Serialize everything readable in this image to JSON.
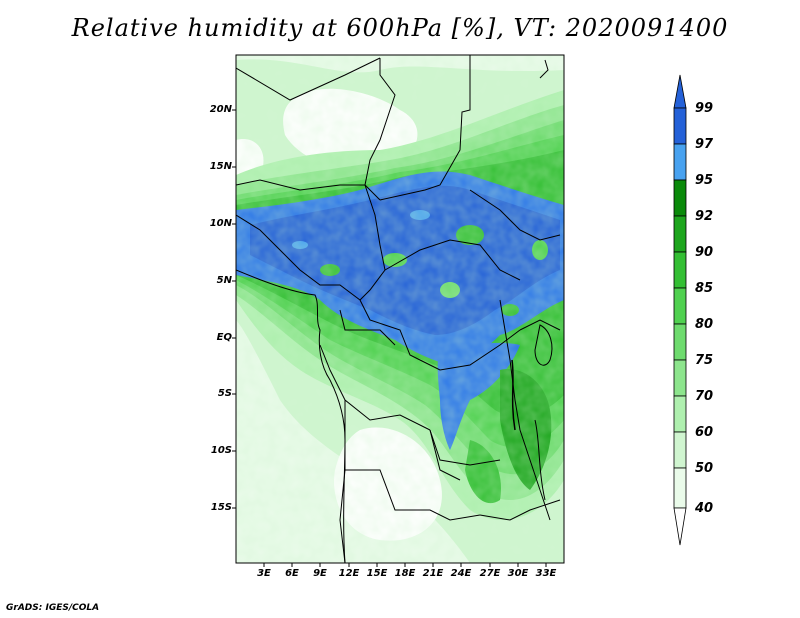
{
  "title": "Relative humidity at 600hPa [%], VT: 2020091400",
  "credit": "GrADS: IGES/COLA",
  "map": {
    "lat_ticks": [
      "20N",
      "15N",
      "10N",
      "5N",
      "EQ",
      "5S",
      "10S",
      "15S"
    ],
    "lon_ticks": [
      "3E",
      "6E",
      "9E",
      "12E",
      "15E",
      "18E",
      "21E",
      "24E",
      "27E",
      "30E",
      "33E"
    ]
  },
  "colorbar": {
    "labels": [
      "99",
      "97",
      "95",
      "92",
      "90",
      "85",
      "80",
      "75",
      "70",
      "60",
      "50",
      "40"
    ],
    "colors": [
      "#2461d8",
      "#2f79e8",
      "#48a2f0",
      "#0a8a0a",
      "#1ea61e",
      "#34bf34",
      "#50d150",
      "#6edb6e",
      "#8de58d",
      "#aff0af",
      "#d0f5d0",
      "#eafbea",
      "#ffffff"
    ]
  },
  "chart_data": {
    "type": "heatmap",
    "title": "Relative humidity at 600hPa [%], VT: 2020091400",
    "variable": "Relative humidity",
    "level": "600hPa",
    "units": "%",
    "valid_time": "2020091400",
    "lat_ticks": [
      "20N",
      "15N",
      "10N",
      "5N",
      "EQ",
      "5S",
      "10S",
      "15S"
    ],
    "lon_ticks": [
      "3E",
      "6E",
      "9E",
      "12E",
      "15E",
      "18E",
      "21E",
      "24E",
      "27E",
      "30E",
      "33E"
    ],
    "color_levels": [
      40,
      50,
      60,
      70,
      75,
      80,
      85,
      90,
      92,
      95,
      97,
      99
    ]
  }
}
